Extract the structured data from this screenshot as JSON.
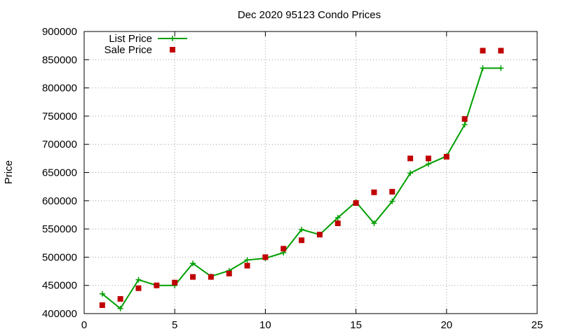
{
  "chart_data": {
    "type": "line",
    "title": "Dec 2020 95123 Condo Prices",
    "xlabel": "",
    "ylabel": "Price",
    "xlim": [
      0,
      25
    ],
    "ylim": [
      400000,
      900000
    ],
    "xticks": [
      0,
      5,
      10,
      15,
      20,
      25
    ],
    "yticks": [
      400000,
      450000,
      500000,
      550000,
      600000,
      650000,
      700000,
      750000,
      800000,
      850000,
      900000
    ],
    "grid": true,
    "legend_position": "top-left",
    "series": [
      {
        "name": "List Price",
        "style": "line-plus",
        "color": "#009e00",
        "x": [
          1,
          2,
          3,
          4,
          5,
          6,
          7,
          8,
          9,
          10,
          11,
          12,
          13,
          14,
          15,
          16,
          17,
          18,
          19,
          20,
          21,
          22,
          23
        ],
        "y": [
          435000,
          409000,
          460000,
          450000,
          450000,
          489000,
          466000,
          476000,
          495000,
          498000,
          508000,
          549000,
          540000,
          570000,
          598000,
          560000,
          599000,
          649000,
          665000,
          679000,
          735000,
          835000,
          835000
        ]
      },
      {
        "name": "Sale Price",
        "style": "square-points",
        "color": "#c00000",
        "x": [
          1,
          2,
          3,
          4,
          5,
          6,
          7,
          8,
          9,
          10,
          11,
          12,
          13,
          14,
          15,
          16,
          17,
          18,
          19,
          20,
          21,
          22,
          23
        ],
        "y": [
          415000,
          426000,
          445000,
          450000,
          455000,
          465000,
          465000,
          471000,
          485000,
          500000,
          515000,
          530000,
          540000,
          560000,
          596000,
          615000,
          616000,
          675000,
          675000,
          678000,
          745000,
          866000,
          866000
        ]
      }
    ]
  }
}
